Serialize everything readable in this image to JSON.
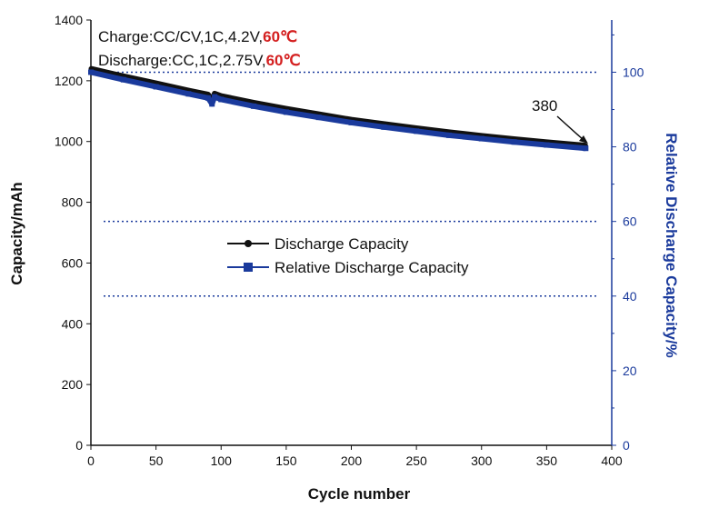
{
  "chart_data": {
    "type": "line",
    "xlabel": "Cycle number",
    "ylabel_left": "Capacity/mAh",
    "ylabel_right": "Relative Discharge Capacity/%",
    "xlim": [
      0,
      400
    ],
    "ylim_left": [
      0,
      1400
    ],
    "ylim_right": [
      0,
      114
    ],
    "x_ticks": [
      "0",
      "50",
      "100",
      "150",
      "200",
      "250",
      "300",
      "350",
      "400"
    ],
    "y_left_ticks": [
      "0",
      "200",
      "400",
      "600",
      "800",
      "1000",
      "1200",
      "1400"
    ],
    "y_right_ticks": [
      "0",
      "20",
      "40",
      "60",
      "80",
      "100"
    ],
    "reference_lines_right": [
      100,
      60,
      40
    ],
    "conditions": {
      "charge_text": "Charge:CC/CV,1C,4.2V,",
      "charge_temp": "60℃",
      "discharge_text": "Discharge:CC,1C,2.75V,",
      "discharge_temp": "60℃",
      "temp_color": "#d42020"
    },
    "annotation": {
      "text": "380",
      "x": 380
    },
    "legend": {
      "position": "center-left",
      "items": [
        {
          "label": "Discharge Capacity",
          "marker": "circle",
          "color": "#111111"
        },
        {
          "label": "Relative Discharge Capacity",
          "marker": "square",
          "color": "#1a3a9c"
        }
      ]
    },
    "series": [
      {
        "name": "Discharge Capacity",
        "axis": "left",
        "color": "#111111",
        "x": [
          0,
          25,
          50,
          75,
          90,
          93,
          95,
          100,
          125,
          150,
          175,
          200,
          225,
          250,
          275,
          300,
          325,
          350,
          380
        ],
        "y": [
          1240,
          1215,
          1192,
          1168,
          1155,
          1135,
          1158,
          1150,
          1128,
          1108,
          1090,
          1072,
          1058,
          1044,
          1031,
          1019,
          1008,
          998,
          987
        ]
      },
      {
        "name": "Relative Discharge Capacity",
        "axis": "right",
        "color": "#1a3a9c",
        "x": [
          0,
          25,
          50,
          75,
          90,
          93,
          95,
          100,
          125,
          150,
          175,
          200,
          225,
          250,
          275,
          300,
          325,
          350,
          380
        ],
        "y": [
          100,
          98.0,
          96.1,
          94.2,
          93.1,
          91.5,
          93.4,
          92.7,
          90.9,
          89.3,
          87.9,
          86.5,
          85.3,
          84.2,
          83.1,
          82.2,
          81.3,
          80.5,
          79.6
        ]
      }
    ]
  }
}
